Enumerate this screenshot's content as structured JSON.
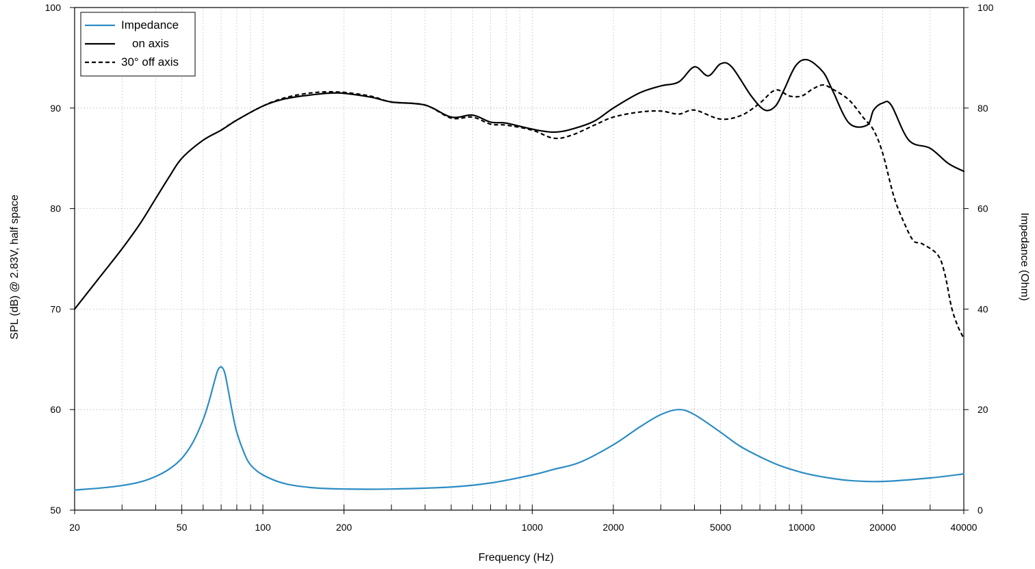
{
  "chart_data": {
    "type": "line",
    "xlabel": "Frequency (Hz)",
    "ylabel": "SPL (dB) @ 2.83V, half space",
    "y2label": "Impedance (Ohm)",
    "x_scale": "log",
    "xlim": [
      20,
      40000
    ],
    "ylim": [
      50,
      100
    ],
    "y2lim": [
      0,
      100
    ],
    "x_ticks": [
      20,
      50,
      100,
      200,
      1000,
      2000,
      5000,
      10000,
      20000,
      40000
    ],
    "x_tick_labels": [
      "20",
      "50",
      "100",
      "200",
      "1000",
      "2000",
      "5000",
      "10000",
      "20000",
      "40000"
    ],
    "y_ticks": [
      50,
      60,
      70,
      80,
      90,
      100
    ],
    "y_tick_labels": [
      "50",
      "60",
      "70",
      "80",
      "90",
      "100"
    ],
    "y2_ticks": [
      0,
      20,
      40,
      60,
      80,
      100
    ],
    "y2_tick_labels": [
      "0",
      "20",
      "40",
      "60",
      "80",
      "100"
    ],
    "grid": "dotted",
    "legend_position": "top-left",
    "series": [
      {
        "name": "Impedance",
        "axis": "right",
        "color": "#2b8cc4",
        "style": "solid",
        "x": [
          20,
          25,
          30,
          35,
          40,
          45,
          50,
          55,
          60,
          63,
          66,
          68,
          70,
          72,
          74,
          77,
          80,
          85,
          90,
          100,
          120,
          150,
          200,
          300,
          500,
          700,
          1000,
          1200,
          1500,
          2000,
          2500,
          3000,
          3500,
          4000,
          5000,
          6000,
          8000,
          10000,
          12000,
          15000,
          20000,
          30000,
          40000
        ],
        "y": [
          4,
          4.4,
          4.9,
          5.6,
          6.7,
          8.2,
          10.3,
          13.5,
          18,
          21.5,
          25.5,
          27.8,
          28.5,
          27.5,
          24.5,
          19.5,
          15.5,
          11.5,
          9,
          7,
          5.3,
          4.5,
          4.2,
          4.2,
          4.6,
          5.4,
          7,
          8.1,
          9.5,
          13,
          16.5,
          19,
          20,
          19,
          15.5,
          12.5,
          9.2,
          7.5,
          6.6,
          5.9,
          5.7,
          6.4,
          7.2
        ]
      },
      {
        "name": "on axis",
        "axis": "left",
        "color": "#000000",
        "style": "solid",
        "x": [
          20,
          25,
          30,
          35,
          40,
          45,
          50,
          60,
          70,
          80,
          100,
          120,
          150,
          190,
          250,
          300,
          400,
          500,
          600,
          700,
          800,
          1000,
          1200,
          1400,
          1700,
          2000,
          2500,
          3000,
          3500,
          4000,
          4500,
          5000,
          5500,
          6500,
          7300,
          8000,
          8600,
          9500,
          10500,
          12000,
          13000,
          15000,
          17500,
          18500,
          20000,
          21500,
          25000,
          30000,
          35000,
          40000
        ],
        "y": [
          70,
          73.3,
          76,
          78.5,
          81,
          83.2,
          85,
          86.8,
          87.8,
          88.8,
          90.2,
          90.9,
          91.3,
          91.5,
          91.1,
          90.6,
          90.3,
          89.1,
          89.3,
          88.6,
          88.5,
          87.9,
          87.6,
          87.9,
          88.7,
          90,
          91.5,
          92.2,
          92.6,
          94.1,
          93.2,
          94.4,
          94.1,
          91.2,
          89.8,
          90.2,
          91.8,
          94.2,
          94.8,
          93.6,
          91.8,
          88.5,
          88.3,
          89.8,
          90.5,
          90.3,
          86.8,
          86,
          84.5,
          83.7
        ]
      },
      {
        "name": "30° off axis",
        "axis": "left",
        "color": "#000000",
        "style": "dashed",
        "x": [
          70,
          80,
          100,
          120,
          150,
          190,
          250,
          300,
          400,
          500,
          600,
          700,
          800,
          1000,
          1200,
          1400,
          1700,
          2000,
          2500,
          3000,
          3500,
          4000,
          5000,
          6000,
          7000,
          8000,
          9000,
          10000,
          11000,
          12000,
          13000,
          15000,
          17000,
          18500,
          20000,
          22000,
          24000,
          26000,
          28000,
          32000,
          34000,
          36000,
          38000,
          40000
        ],
        "y": [
          87.8,
          88.8,
          90.2,
          91,
          91.5,
          91.6,
          91.2,
          90.6,
          90.3,
          89,
          89.1,
          88.4,
          88.3,
          87.8,
          87,
          87.3,
          88.3,
          89.1,
          89.6,
          89.7,
          89.4,
          89.8,
          88.9,
          89.3,
          90.5,
          91.8,
          91.2,
          91.2,
          91.9,
          92.3,
          91.9,
          90.8,
          89,
          87.8,
          85.5,
          81.2,
          78.6,
          76.8,
          76.5,
          75.4,
          73.5,
          70.2,
          68.3,
          67.1
        ]
      }
    ]
  }
}
